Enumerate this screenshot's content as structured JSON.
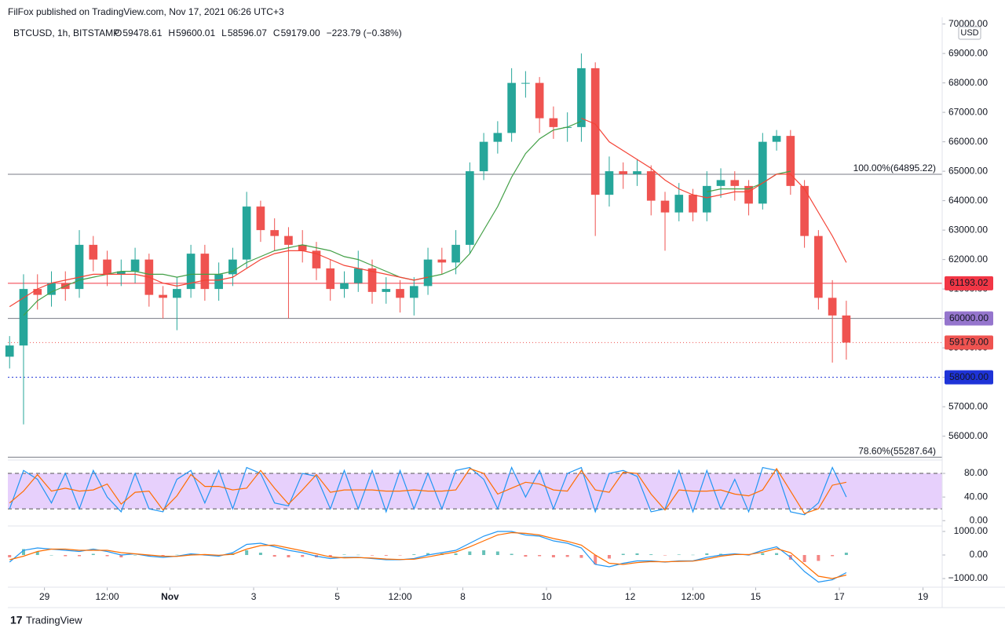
{
  "header": "FilFox published on TradingView.com, Nov 17, 2021 06:26 UTC+3",
  "brand": "TradingView",
  "currency": "USD",
  "chart_data": [
    {
      "type": "candlestick",
      "title": "BTCUSD, 1h, BITSTAMP",
      "ohlc_legend": [
        {
          "label": "O",
          "value": "59478.61"
        },
        {
          "label": "H",
          "value": "59600.01"
        },
        {
          "label": "L",
          "value": "58596.07"
        },
        {
          "label": "C",
          "value": "59179.00"
        }
      ],
      "change": "−223.79 (−0.38%)",
      "x": [
        -20,
        -12,
        -4,
        4,
        12,
        20,
        28,
        36,
        44,
        52,
        60,
        68,
        76,
        84,
        92,
        100,
        108,
        116,
        124,
        132,
        140,
        148,
        156,
        164,
        172,
        180,
        188,
        196,
        204,
        212,
        220,
        228,
        236,
        244,
        252,
        260,
        268,
        276,
        284,
        292,
        300,
        308,
        316,
        324,
        332,
        340,
        348,
        356,
        364,
        372,
        380,
        388,
        396,
        404,
        412,
        420,
        428,
        436,
        444,
        452,
        460
      ],
      "open": [
        58700,
        59080,
        61000,
        60800,
        61200,
        61000,
        62500,
        62000,
        61500,
        61600,
        62000,
        60800,
        60700,
        61000,
        62200,
        61000,
        61500,
        62000,
        63800,
        63000,
        62800,
        62500,
        62300,
        61700,
        61000,
        61200,
        61700,
        60900,
        61000,
        60700,
        61100,
        62000,
        61900,
        62500,
        65000,
        66000,
        66300,
        68000,
        68000,
        66800,
        66500,
        66500,
        68500,
        64200,
        65000,
        64900,
        65000,
        64000,
        63600,
        64200,
        63600,
        64500,
        64700,
        64500,
        63900,
        66000,
        66200,
        64500,
        62800,
        60700,
        60100
      ],
      "high": [
        59400,
        61500,
        61500,
        61600,
        61600,
        63000,
        62800,
        62300,
        62000,
        62400,
        62200,
        61100,
        61400,
        62500,
        62500,
        61900,
        62400,
        64300,
        64000,
        63400,
        63100,
        63000,
        62600,
        62000,
        61600,
        62300,
        62000,
        61400,
        61300,
        61400,
        62400,
        62400,
        63000,
        65300,
        66300,
        66700,
        68500,
        68400,
        68200,
        67200,
        67000,
        69000,
        68700,
        65500,
        65300,
        65400,
        65200,
        64300,
        64600,
        64400,
        65000,
        65100,
        65000,
        64700,
        66300,
        66400,
        66400,
        64700,
        63000,
        61300,
        60600
      ],
      "low": [
        58300,
        56400,
        60300,
        60400,
        60600,
        60700,
        61600,
        61100,
        61100,
        61200,
        60400,
        60000,
        59600,
        60700,
        60600,
        60600,
        61100,
        61700,
        62600,
        62300,
        60000,
        61900,
        61300,
        60600,
        60700,
        60900,
        60500,
        60500,
        60200,
        60100,
        60800,
        61500,
        61500,
        62200,
        64700,
        65600,
        66000,
        67500,
        66300,
        66100,
        66000,
        66000,
        62800,
        63800,
        64400,
        64500,
        63500,
        62300,
        63300,
        63300,
        63300,
        64100,
        64000,
        63500,
        63700,
        65700,
        64200,
        62400,
        60300,
        58500,
        58600
      ],
      "close": [
        59080,
        61000,
        60800,
        61200,
        61000,
        62500,
        62000,
        61500,
        61600,
        62000,
        60800,
        60700,
        61000,
        62200,
        61000,
        61500,
        62000,
        63800,
        63000,
        62800,
        62500,
        62300,
        61700,
        61000,
        61200,
        61700,
        60900,
        61000,
        60700,
        61100,
        62000,
        61900,
        62500,
        65000,
        66000,
        66300,
        68000,
        68000,
        66800,
        66500,
        66500,
        68500,
        64200,
        65000,
        64900,
        65000,
        64000,
        63600,
        64200,
        63600,
        64500,
        64700,
        64500,
        63900,
        66000,
        66200,
        64500,
        62800,
        60700,
        60100,
        59179
      ],
      "up_color": "#26a69a",
      "down_color": "#ef5350",
      "series": [
        {
          "color": "#43a047",
          "values": [
            null,
            60100,
            60600,
            60900,
            61100,
            61300,
            61400,
            61500,
            61600,
            61600,
            61500,
            61500,
            61400,
            61500,
            61500,
            61500,
            61600,
            61900,
            62100,
            62300,
            62400,
            62500,
            62400,
            62300,
            62100,
            62000,
            61800,
            61600,
            61400,
            61300,
            61400,
            61500,
            61700,
            62200,
            63000,
            63800,
            64800,
            65600,
            66100,
            66400,
            66500,
            66700,
            null,
            null,
            null,
            null,
            null,
            null,
            null,
            null,
            64300,
            64400,
            64400,
            64400,
            64600,
            64900,
            65000,
            null,
            null,
            null,
            null
          ]
        },
        {
          "color": "#f44336",
          "values": [
            60400,
            60700,
            61000,
            61200,
            61300,
            61400,
            61500,
            61500,
            61500,
            61500,
            61400,
            61200,
            61100,
            61200,
            61300,
            61300,
            61400,
            61700,
            62000,
            62200,
            62300,
            62300,
            62200,
            62000,
            61800,
            61700,
            61600,
            61500,
            61400,
            61300,
            61400,
            null,
            null,
            null,
            null,
            null,
            null,
            null,
            null,
            null,
            null,
            66800,
            66600,
            66000,
            65700,
            65400,
            65100,
            64700,
            64400,
            64200,
            64100,
            64200,
            64300,
            64300,
            64600,
            64900,
            64900,
            64400,
            63600,
            62800,
            61900
          ]
        }
      ],
      "price_lines": [
        {
          "value": 61193.02,
          "label": "61193.02",
          "color": "#f23645",
          "dash": "none"
        },
        {
          "value": 60000,
          "label": "60000.00",
          "color": "#9575cd",
          "line_color": "#787b86",
          "dash": "none"
        },
        {
          "value": 59179,
          "label": "59179.00",
          "color": "#ef5350",
          "dash": "1 3"
        },
        {
          "value": 58000,
          "label": "58000.00",
          "color": "#1e33d8",
          "dash": "2 3"
        }
      ],
      "fib_levels": [
        {
          "value": 64895.22,
          "label": "100.00%(64895.22)"
        },
        {
          "value": 55287.64,
          "label": "78.60%(55287.64)"
        }
      ],
      "xlim": [
        -21,
        515
      ],
      "xticks": [
        {
          "value": 0,
          "label": "29"
        },
        {
          "value": 36,
          "label": "12:00"
        },
        {
          "value": 72,
          "label": "Nov"
        },
        {
          "value": 120,
          "label": "3"
        },
        {
          "value": 168,
          "label": "5"
        },
        {
          "value": 204,
          "label": "12:00"
        },
        {
          "value": 240,
          "label": "8"
        },
        {
          "value": 288,
          "label": "10"
        },
        {
          "value": 336,
          "label": "12"
        },
        {
          "value": 372,
          "label": "12:00"
        },
        {
          "value": 408,
          "label": "15"
        },
        {
          "value": 456,
          "label": "17"
        },
        {
          "value": 504,
          "label": "19"
        }
      ],
      "ylim": [
        55270,
        70230
      ],
      "yticks": [
        {
          "value": 56000,
          "label": "56000.00"
        },
        {
          "value": 57000,
          "label": "57000.00"
        },
        {
          "value": 58000,
          "label": "58000.00"
        },
        {
          "value": 59000,
          "label": "59000.00"
        },
        {
          "value": 60000,
          "label": "60000.00"
        },
        {
          "value": 61000,
          "label": "61000.00"
        },
        {
          "value": 62000,
          "label": "62000.00"
        },
        {
          "value": 63000,
          "label": "63000.00"
        },
        {
          "value": 64000,
          "label": "64000.00"
        },
        {
          "value": 65000,
          "label": "65000.00"
        },
        {
          "value": 66000,
          "label": "66000.00"
        },
        {
          "value": 67000,
          "label": "67000.00"
        },
        {
          "value": 68000,
          "label": "68000.00"
        },
        {
          "value": 69000,
          "label": "69000.00"
        },
        {
          "value": 70000,
          "label": "70000.00"
        }
      ]
    },
    {
      "type": "line",
      "series": [
        {
          "color": "#2196f3",
          "values": [
            20,
            85,
            70,
            30,
            80,
            20,
            85,
            40,
            15,
            80,
            20,
            15,
            70,
            85,
            30,
            85,
            20,
            90,
            80,
            30,
            25,
            80,
            75,
            20,
            85,
            20,
            85,
            15,
            85,
            20,
            80,
            20,
            85,
            90,
            70,
            20,
            90,
            40,
            85,
            20,
            80,
            90,
            15,
            80,
            85,
            75,
            15,
            20,
            85,
            15,
            85,
            20,
            70,
            15,
            90,
            85,
            15,
            10,
            30,
            90,
            40
          ]
        },
        {
          "color": "#ff6d00",
          "values": [
            30,
            50,
            78,
            50,
            55,
            50,
            52,
            62,
            28,
            48,
            50,
            18,
            42,
            78,
            58,
            58,
            52,
            55,
            85,
            55,
            28,
            52,
            78,
            48,
            52,
            52,
            52,
            50,
            50,
            52,
            50,
            50,
            52,
            88,
            80,
            45,
            55,
            65,
            62,
            52,
            50,
            85,
            52,
            48,
            82,
            80,
            45,
            18,
            52,
            50,
            50,
            52,
            45,
            42,
            52,
            88,
            50,
            12,
            20,
            60,
            65
          ]
        }
      ],
      "band": [
        20,
        80
      ],
      "band_color": "#e1c4fb",
      "ylim": [
        -5,
        100
      ],
      "yticks": [
        {
          "value": 0,
          "label": "0.00"
        },
        {
          "value": 40,
          "label": "40.00"
        },
        {
          "value": 80,
          "label": "80.00"
        }
      ]
    },
    {
      "type": "macd",
      "series": [
        {
          "color": "#2196f3",
          "values": [
            -300,
            200,
            300,
            250,
            200,
            150,
            250,
            150,
            0,
            50,
            -50,
            -100,
            -50,
            50,
            0,
            -50,
            100,
            450,
            500,
            350,
            200,
            100,
            -50,
            -150,
            -100,
            -100,
            -150,
            -200,
            -200,
            -150,
            0,
            100,
            200,
            500,
            800,
            1000,
            1000,
            850,
            800,
            600,
            500,
            300,
            -400,
            -500,
            -350,
            -250,
            -250,
            -300,
            -250,
            -250,
            -100,
            0,
            50,
            0,
            200,
            350,
            -100,
            -700,
            -1150,
            -1050,
            -750
          ]
        },
        {
          "color": "#ff6d00",
          "values": [
            -200,
            -50,
            150,
            250,
            250,
            200,
            200,
            200,
            100,
            50,
            0,
            -50,
            -60,
            0,
            20,
            -10,
            30,
            250,
            400,
            420,
            300,
            180,
            50,
            -80,
            -120,
            -110,
            -130,
            -170,
            -190,
            -180,
            -80,
            30,
            130,
            350,
            600,
            850,
            950,
            920,
            850,
            700,
            580,
            420,
            0,
            -350,
            -400,
            -320,
            -280,
            -290,
            -270,
            -260,
            -170,
            -50,
            20,
            20,
            120,
            270,
            100,
            -400,
            -900,
            -1000,
            -850
          ]
        }
      ],
      "histogram": [
        -100,
        250,
        150,
        0,
        -50,
        -50,
        50,
        -50,
        -100,
        0,
        -50,
        -50,
        10,
        50,
        -20,
        -40,
        70,
        200,
        100,
        -70,
        -100,
        -80,
        -100,
        -70,
        20,
        10,
        -20,
        -30,
        -10,
        30,
        80,
        70,
        70,
        150,
        200,
        150,
        50,
        -70,
        -50,
        -100,
        -80,
        -120,
        -400,
        -150,
        50,
        70,
        30,
        -10,
        20,
        10,
        70,
        50,
        30,
        -20,
        80,
        80,
        -200,
        -300,
        -250,
        -50,
        100
      ],
      "hist_up_color": "#26a69a",
      "hist_down_color": "#ef5350",
      "ylim": [
        -1300,
        1167
      ],
      "yticks": [
        {
          "value": -1000,
          "label": "−1000.00"
        },
        {
          "value": 0,
          "label": "0.00"
        },
        {
          "value": 1000,
          "label": "1000.00"
        }
      ]
    }
  ]
}
